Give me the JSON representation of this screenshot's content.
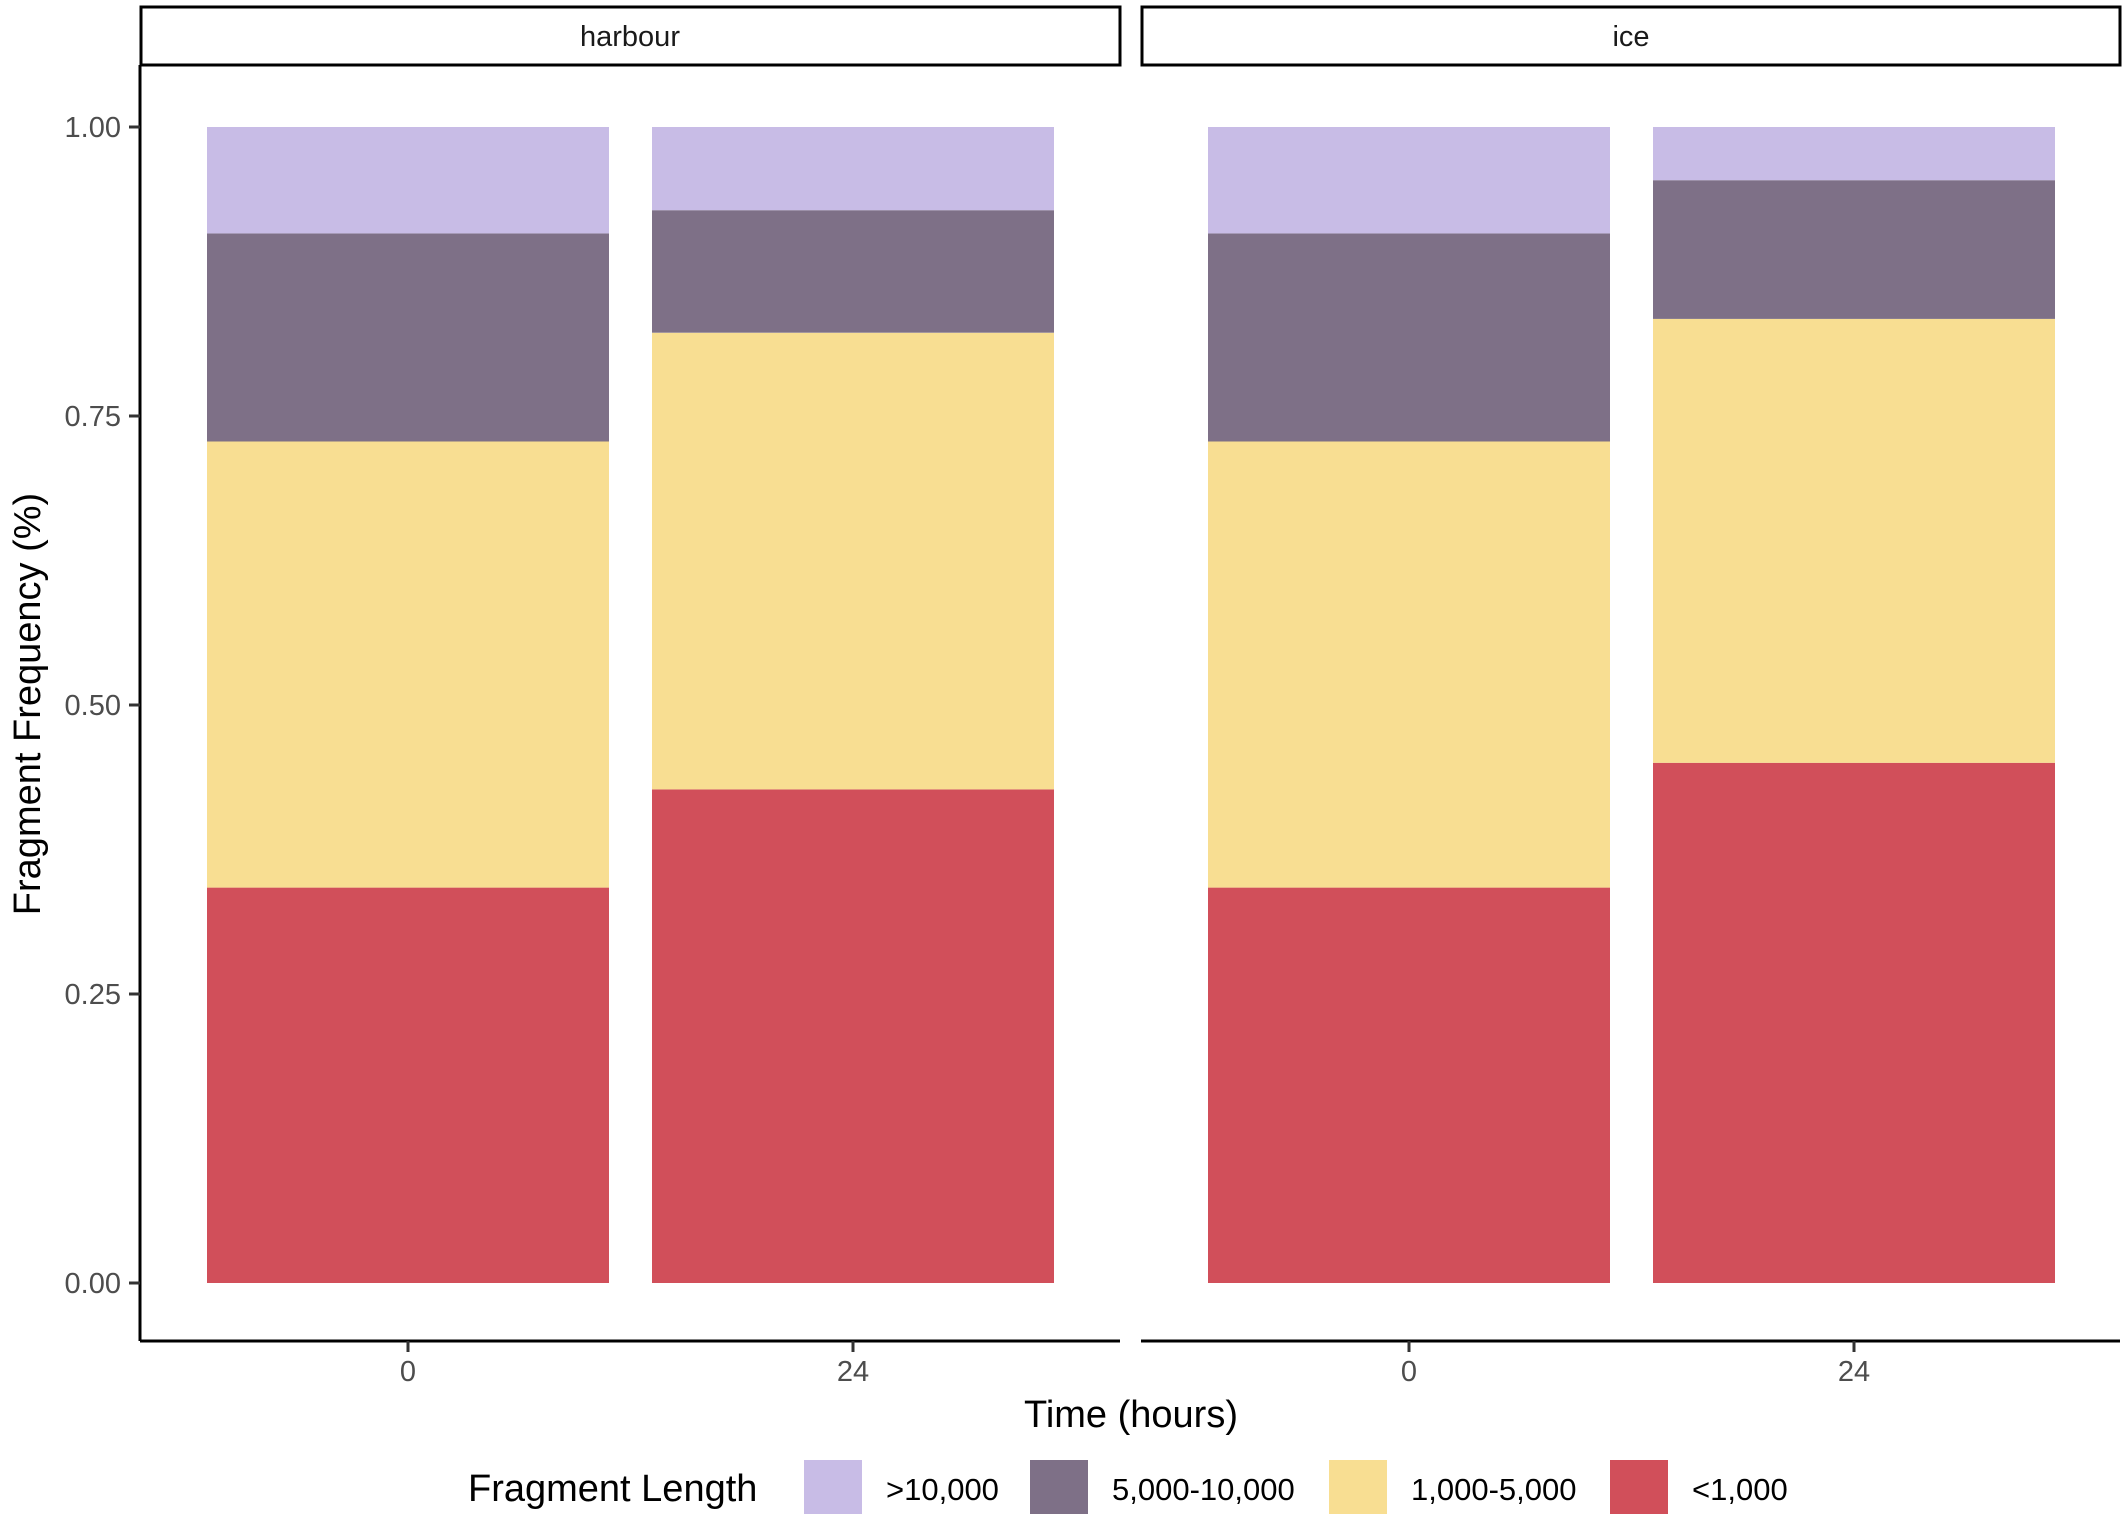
{
  "chart_data": {
    "type": "bar",
    "stacked": true,
    "facet_labels": [
      "harbour",
      "ice"
    ],
    "categories": [
      "0",
      "24"
    ],
    "xlabel": "Time (hours)",
    "ylabel": "Fragment Frequency (%)",
    "ylim": [
      0,
      1
    ],
    "yticks": [
      "0.00",
      "0.25",
      "0.50",
      "0.75",
      "1.00"
    ],
    "ytick_values": [
      0,
      0.25,
      0.5,
      0.75,
      1.0
    ],
    "legend_title": "Fragment Length",
    "legend_position": "bottom",
    "grid": false,
    "series": [
      {
        "name": "<1,000",
        "color": "#D14F5A"
      },
      {
        "name": "1,000-5,000",
        "color": "#F8DE92"
      },
      {
        "name": "5,000-10,000",
        "color": "#7E7087"
      },
      {
        "name": ">10,000",
        "color": "#C8BCE6"
      }
    ],
    "legend_order": [
      ">10,000",
      "5,000-10,000",
      "1,000-5,000",
      "<1,000"
    ],
    "panels": [
      {
        "facet": "harbour",
        "bars": [
          {
            "x": "0",
            "values": [
              0.342,
              0.386,
              0.18,
              0.092
            ]
          },
          {
            "x": "24",
            "values": [
              0.427,
              0.395,
              0.106,
              0.072
            ]
          }
        ]
      },
      {
        "facet": "ice",
        "bars": [
          {
            "x": "0",
            "values": [
              0.342,
              0.386,
              0.18,
              0.092
            ]
          },
          {
            "x": "24",
            "values": [
              0.45,
              0.384,
              0.12,
              0.046
            ]
          }
        ]
      }
    ]
  }
}
